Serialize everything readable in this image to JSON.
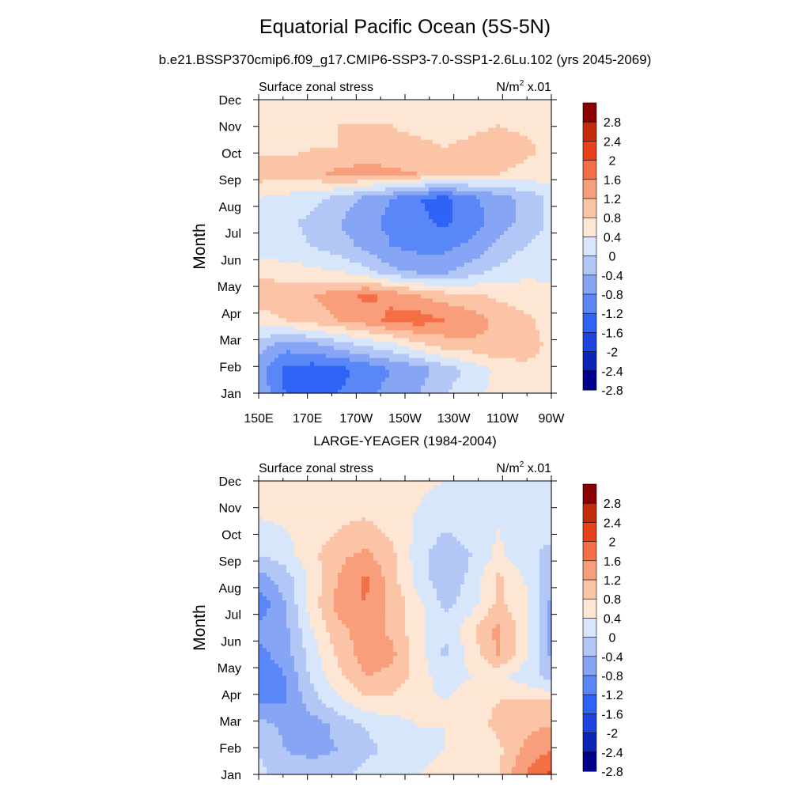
{
  "title": "Equatorial Pacific Ocean (5S-5N)",
  "subtitle": "b.e21.BSSP370cmip6.f09_g17.CMIP6-SSP3-7.0-SSP1-2.6Lu.102 (yrs 2045-2069)",
  "colors": {
    "levels": [
      "#00008b",
      "#0b26b4",
      "#1d44de",
      "#2f63f6",
      "#5a87f7",
      "#86a6f5",
      "#b3c7f7",
      "#d7e6fb",
      "#fde6d3",
      "#fcc4a7",
      "#f99e7a",
      "#f46f45",
      "#e84318",
      "#c22c06",
      "#8b0000"
    ]
  },
  "chart_data": [
    {
      "type": "heatmap",
      "panel_title": "",
      "left_label": "Surface zonal stress",
      "unit_base": "N/m",
      "unit_sup": "2",
      "unit_suffix": " x.01",
      "ylabel": "Month",
      "x_ticks": [
        "150E",
        "170E",
        "170W",
        "150W",
        "130W",
        "110W",
        "90W"
      ],
      "y_ticks": [
        "Jan",
        "Feb",
        "Mar",
        "Apr",
        "May",
        "Jun",
        "Jul",
        "Aug",
        "Sep",
        "Oct",
        "Nov",
        "Dec"
      ],
      "colorbar_labels": [
        "2.8",
        "2.4",
        "2",
        "1.6",
        "1.2",
        "0.8",
        "0.4",
        "0",
        "-0.4",
        "-0.8",
        "-1.2",
        "-1.6",
        "-2",
        "-2.4",
        "-2.8"
      ],
      "levels": [
        -2.8,
        -2.4,
        -2.0,
        -1.6,
        -1.2,
        -0.8,
        -0.4,
        0,
        0.4,
        0.8,
        1.2,
        1.6,
        2.0,
        2.4,
        2.8
      ],
      "x_values_lon": [
        150,
        170,
        190,
        210,
        230,
        250,
        270
      ],
      "grid": [
        [
          -0.9,
          -1.6,
          -1.7,
          -1.6,
          -1.4,
          -1.0,
          -0.8,
          -0.4,
          -0.2,
          0.2,
          0.3,
          0.3
        ],
        [
          -1.0,
          -1.7,
          -1.8,
          -1.7,
          -1.5,
          -1.2,
          -1.0,
          -0.6,
          -0.3,
          0.1,
          0.3,
          0.3
        ],
        [
          -0.6,
          -1.0,
          -0.9,
          -0.6,
          -0.3,
          -0.1,
          0.3,
          0.6,
          0.7,
          0.8,
          0.6,
          0.3
        ],
        [
          0.2,
          0.4,
          0.6,
          0.8,
          1.0,
          1.3,
          1.4,
          1.2,
          1.0,
          0.7,
          0.5,
          0.2
        ],
        [
          0.6,
          0.7,
          0.8,
          1.0,
          1.3,
          1.1,
          0.8,
          0.6,
          0.5,
          0.3,
          0.2,
          0.1
        ],
        [
          0.3,
          0.2,
          0.1,
          0.0,
          -0.3,
          -0.7,
          -0.9,
          -0.9,
          -0.6,
          -0.3,
          -0.1,
          -0.1
        ],
        [
          -0.3,
          -0.3,
          -0.4,
          -0.6,
          -0.9,
          -1.2,
          -1.3,
          -1.3,
          -1.1,
          -0.7,
          -0.4,
          -0.2
        ],
        [
          -0.2,
          -0.3,
          -0.5,
          -0.8,
          -1.1,
          -1.3,
          -1.5,
          -1.7,
          -1.4,
          -1.0,
          -0.7,
          -0.3
        ],
        [
          0.0,
          -0.1,
          -0.3,
          -0.5,
          -0.9,
          -1.2,
          -1.6,
          -1.7,
          -1.3,
          -1.0,
          -0.7,
          -0.3
        ],
        [
          0.6,
          0.6,
          0.7,
          0.9,
          1.0,
          0.9,
          0.8,
          0.6,
          0.5,
          0.4,
          0.3,
          0.2
        ],
        [
          0.3,
          0.3,
          0.4,
          0.4,
          0.5,
          0.5,
          0.5,
          0.4,
          0.5,
          0.6,
          0.5,
          0.3
        ],
        [
          0.2,
          0.3,
          0.3,
          0.4,
          0.4,
          0.4,
          0.3,
          0.3,
          0.3,
          0.4,
          0.3,
          0.2
        ],
        [
          0.1,
          0.2,
          0.2,
          0.3,
          0.3,
          0.2,
          0.2,
          0.2,
          0.2,
          0.2,
          0.2,
          0.1
        ]
      ]
    },
    {
      "type": "heatmap",
      "panel_title": "LARGE-YEAGER (1984-2004)",
      "left_label": "Surface zonal stress",
      "unit_base": "N/m",
      "unit_sup": "2",
      "unit_suffix": " x.01",
      "ylabel": "Month",
      "x_ticks": [
        "150E",
        "170E",
        "170W",
        "150W",
        "130W",
        "110W",
        "90W"
      ],
      "y_ticks": [
        "Jan",
        "Feb",
        "Mar",
        "Apr",
        "May",
        "Jun",
        "Jul",
        "Aug",
        "Sep",
        "Oct",
        "Nov",
        "Dec"
      ],
      "colorbar_labels": [
        "2.8",
        "2.4",
        "2",
        "1.6",
        "1.2",
        "0.8",
        "0.4",
        "0",
        "-0.4",
        "-0.8",
        "-1.2",
        "-1.6",
        "-2",
        "-2.4",
        "-2.8"
      ],
      "levels": [
        -2.8,
        -2.4,
        -2.0,
        -1.6,
        -1.2,
        -0.8,
        -0.4,
        0,
        0.4,
        0.8,
        1.2,
        1.6,
        2.0,
        2.4,
        2.8
      ],
      "x_values_lon": [
        150,
        170,
        190,
        210,
        230,
        250,
        270
      ],
      "grid": [
        [
          -0.3,
          -0.6,
          -0.6,
          -0.5,
          -0.3,
          -0.1,
          0.0,
          0.1,
          0.0,
          0.4,
          1.2,
          1.7
        ],
        [
          -0.4,
          -0.8,
          -0.9,
          -0.8,
          -0.5,
          -0.3,
          -0.1,
          0.0,
          0.0,
          0.3,
          0.9,
          1.2
        ],
        [
          -0.6,
          -0.9,
          -1.0,
          -0.7,
          -0.4,
          -0.2,
          0.0,
          0.0,
          0.2,
          0.5,
          0.7,
          0.8
        ],
        [
          -1.3,
          -1.2,
          -0.6,
          -0.1,
          0.3,
          0.3,
          0.1,
          0.0,
          0.3,
          0.4,
          0.4,
          0.4
        ],
        [
          -1.6,
          -1.2,
          -0.3,
          0.3,
          0.8,
          0.7,
          0.2,
          -0.2,
          0.0,
          0.1,
          -0.2,
          -0.5
        ],
        [
          -1.3,
          -1.0,
          -0.2,
          0.5,
          1.0,
          0.9,
          0.2,
          -0.5,
          0.2,
          0.9,
          0.1,
          -0.9
        ],
        [
          -1.1,
          -0.9,
          0.0,
          0.7,
          1.0,
          0.7,
          0.1,
          -0.3,
          0.3,
          0.9,
          0.2,
          -0.9
        ],
        [
          -1.5,
          -0.8,
          0.2,
          1.0,
          1.2,
          0.7,
          0.1,
          -0.5,
          -0.2,
          0.5,
          0.1,
          -0.9
        ],
        [
          -1.0,
          -0.6,
          0.1,
          0.8,
          1.3,
          0.6,
          -0.2,
          -0.7,
          -0.3,
          0.5,
          0.0,
          -0.7
        ],
        [
          -0.4,
          -0.2,
          0.3,
          0.7,
          0.9,
          0.5,
          -0.2,
          -0.7,
          -0.4,
          0.1,
          -0.3,
          -0.5
        ],
        [
          -0.2,
          0.0,
          0.2,
          0.4,
          0.5,
          0.3,
          -0.1,
          -0.4,
          -0.2,
          0.0,
          -0.3,
          -0.3
        ],
        [
          0.2,
          0.2,
          0.2,
          0.3,
          0.3,
          0.2,
          0.0,
          -0.2,
          -0.1,
          0.0,
          -0.2,
          -0.1
        ],
        [
          0.2,
          0.3,
          0.3,
          0.3,
          0.2,
          0.2,
          0.1,
          0.0,
          0.0,
          0.0,
          -0.1,
          0.0
        ]
      ]
    }
  ]
}
